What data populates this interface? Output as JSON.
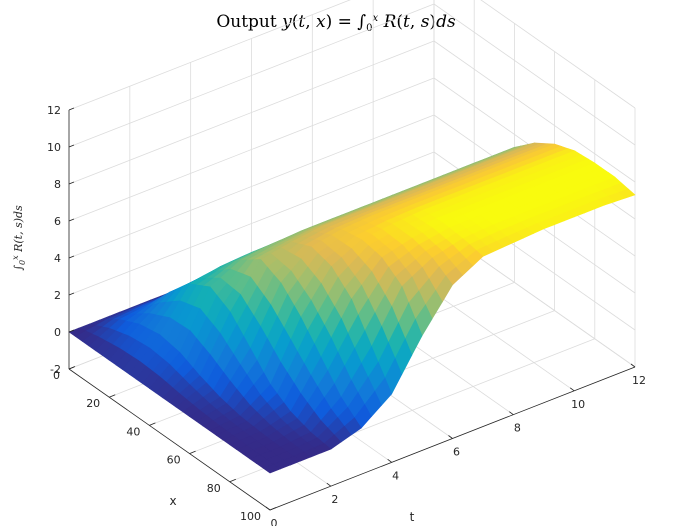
{
  "chart_data": {
    "type": "surface",
    "title": "Output y(t,x) = ∫₀ˣ R(t,s) ds",
    "xlabel": "t",
    "ylabel": "x",
    "zlabel": "∫₀ˣ R(t,s)ds",
    "tlim": [
      0,
      12
    ],
    "xlim": [
      0,
      100
    ],
    "zlim": [
      -2,
      12
    ],
    "t_ticks": [
      "0",
      "2",
      "4",
      "6",
      "8",
      "10",
      "12"
    ],
    "x_ticks": [
      "0",
      "20",
      "40",
      "60",
      "80",
      "100"
    ],
    "z_ticks": [
      "-2",
      "0",
      "2",
      "4",
      "6",
      "8",
      "10",
      "12"
    ],
    "grid": true,
    "colormap": "parula",
    "surface": {
      "t": [
        0,
        1,
        2,
        3,
        4,
        5,
        6,
        7,
        8,
        9,
        10,
        11,
        12
      ],
      "x": [
        0,
        10,
        20,
        30,
        40,
        50,
        60,
        70,
        80,
        90,
        100
      ],
      "z": [
        [
          0,
          0,
          0,
          0,
          0,
          0,
          0,
          0,
          0,
          0,
          0
        ],
        [
          0,
          0.8,
          1.3,
          1.5,
          1.3,
          0.8,
          0.4,
          0.15,
          0.05,
          0,
          0
        ],
        [
          0,
          1.0,
          2.4,
          3.6,
          4.2,
          3.6,
          2.4,
          1.2,
          0.5,
          0.15,
          0
        ],
        [
          0,
          1.0,
          2.5,
          3.9,
          5.0,
          5.8,
          5.3,
          4.2,
          2.8,
          1.4,
          0.5
        ],
        [
          0,
          1.0,
          2.5,
          4.0,
          5.2,
          6.1,
          6.6,
          6.3,
          5.3,
          3.5,
          1.7
        ],
        [
          0,
          1.0,
          2.5,
          4.0,
          5.3,
          6.3,
          6.9,
          7.1,
          6.9,
          6.1,
          4.2
        ],
        [
          0,
          1.0,
          2.5,
          4.0,
          5.3,
          6.3,
          7.0,
          7.3,
          7.3,
          7.0,
          6.3
        ],
        [
          0,
          1.0,
          2.5,
          4.0,
          5.3,
          6.3,
          7.0,
          7.4,
          7.5,
          7.4,
          7.2
        ],
        [
          0,
          1.0,
          2.5,
          4.0,
          5.3,
          6.3,
          7.0,
          7.4,
          7.5,
          7.5,
          7.3
        ],
        [
          0,
          1.0,
          2.5,
          4.0,
          5.3,
          6.3,
          7.0,
          7.4,
          7.5,
          7.5,
          7.4
        ],
        [
          0,
          1.0,
          2.5,
          4.0,
          5.3,
          6.3,
          7.0,
          7.4,
          7.5,
          7.5,
          7.4
        ],
        [
          0,
          1.0,
          2.5,
          4.0,
          5.3,
          6.3,
          7.0,
          7.4,
          7.5,
          7.5,
          7.4
        ],
        [
          0,
          1.0,
          2.5,
          4.0,
          5.3,
          6.3,
          7.0,
          7.4,
          7.5,
          7.5,
          7.3
        ]
      ]
    }
  }
}
